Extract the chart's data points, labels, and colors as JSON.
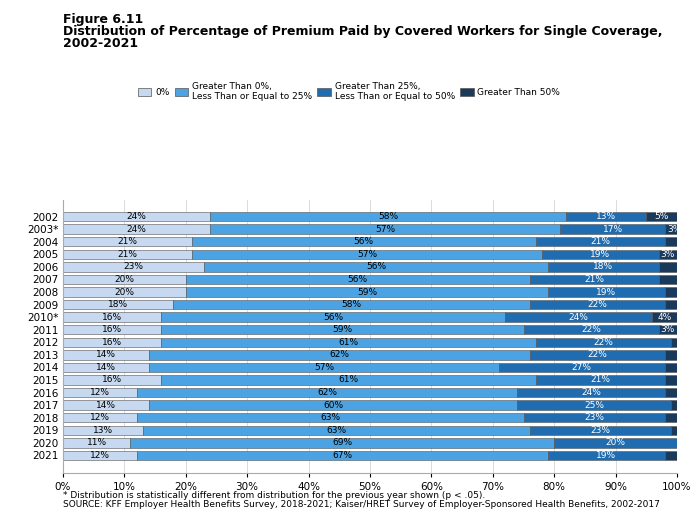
{
  "years": [
    "2002",
    "2003*",
    "2004",
    "2005",
    "2006",
    "2007",
    "2008",
    "2009",
    "2010*",
    "2011",
    "2012",
    "2013",
    "2014",
    "2015",
    "2016",
    "2017",
    "2018",
    "2019",
    "2020",
    "2021"
  ],
  "zero_pct": [
    24,
    24,
    21,
    21,
    23,
    20,
    20,
    18,
    16,
    16,
    16,
    14,
    14,
    16,
    12,
    14,
    12,
    13,
    11,
    12
  ],
  "gt0_le25": [
    58,
    57,
    56,
    57,
    56,
    56,
    59,
    58,
    56,
    59,
    61,
    62,
    57,
    61,
    62,
    60,
    63,
    63,
    69,
    67
  ],
  "gt25_le50": [
    13,
    17,
    21,
    19,
    18,
    21,
    19,
    22,
    24,
    22,
    22,
    22,
    27,
    21,
    24,
    25,
    23,
    23,
    20,
    19
  ],
  "gt50": [
    5,
    3,
    2,
    3,
    3,
    3,
    2,
    2,
    4,
    3,
    1,
    2,
    2,
    2,
    2,
    1,
    2,
    1,
    0,
    2
  ],
  "gt50_show_label": [
    true,
    true,
    false,
    true,
    false,
    false,
    false,
    false,
    true,
    true,
    false,
    false,
    false,
    false,
    false,
    false,
    false,
    false,
    false,
    false
  ],
  "colors": [
    "#c6d9f1",
    "#4ba3e3",
    "#1f6cb0",
    "#1a3a5c"
  ],
  "legend_labels": [
    "0%",
    "Greater Than 0%,\nLess Than or Equal to 25%",
    "Greater Than 25%,\nLess Than or Equal to 50%",
    "Greater Than 50%"
  ],
  "title_line1": "Figure 6.11",
  "title_line2": "Distribution of Percentage of Premium Paid by Covered Workers for Single Coverage,",
  "title_line3": "2002-2021",
  "footnote1": "* Distribution is statistically different from distribution for the previous year shown (p < .05).",
  "footnote2": "SOURCE: KFF Employer Health Benefits Survey, 2018-2021; Kaiser/HRET Survey of Employer-Sponsored Health Benefits, 2002-2017",
  "xlabel_ticks": [
    "0%",
    "10%",
    "20%",
    "30%",
    "40%",
    "50%",
    "60%",
    "70%",
    "80%",
    "90%",
    "100%"
  ],
  "bar_height": 0.75
}
